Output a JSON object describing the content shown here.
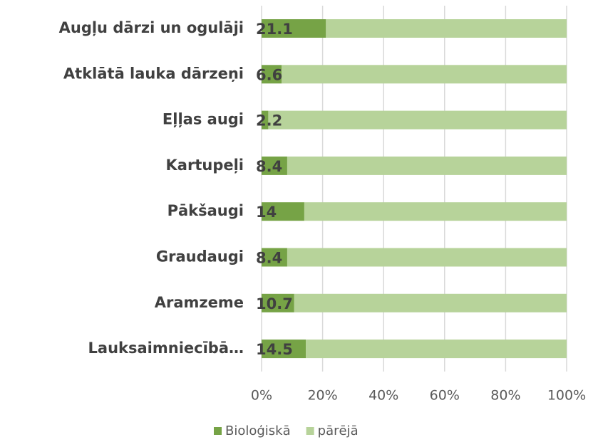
{
  "chart_data": {
    "type": "stacked-bar-horizontal",
    "categories": [
      "Augļu dārzi un ogulāji",
      "Atklātā lauka dārzeņi",
      "Eļļas augi",
      "Kartupeļi",
      "Pākšaugi",
      "Graudaugi",
      "Aramzeme",
      "Lauksaimniecībā…"
    ],
    "series": [
      {
        "name": "Bioloģiskā",
        "color": "#76a346",
        "values": [
          21.1,
          6.6,
          2.2,
          8.4,
          14,
          8.4,
          10.7,
          14.5
        ]
      },
      {
        "name": "pārējā",
        "color": "#b7d39a",
        "values": [
          78.9,
          93.4,
          97.8,
          91.6,
          86,
          91.6,
          89.3,
          85.5
        ]
      }
    ],
    "xlim": [
      0,
      100
    ],
    "xticks": [
      {
        "value": 0,
        "label": "0%"
      },
      {
        "value": 20,
        "label": "20%"
      },
      {
        "value": 40,
        "label": "40%"
      },
      {
        "value": 60,
        "label": "60%"
      },
      {
        "value": 80,
        "label": "80%"
      },
      {
        "value": 100,
        "label": "100%"
      }
    ],
    "grid": true,
    "legend": "bottom"
  }
}
